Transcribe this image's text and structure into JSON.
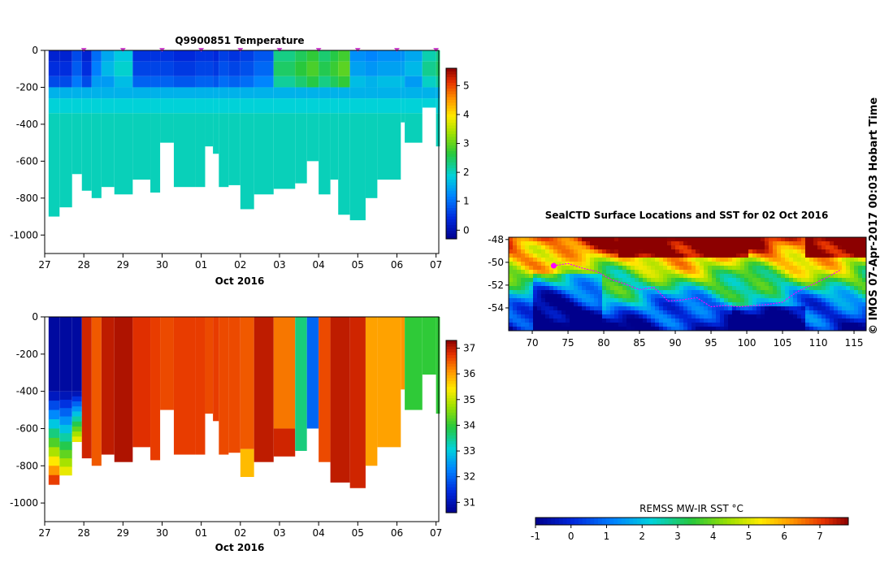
{
  "chart_data": [
    {
      "type": "heatmap",
      "title": "Q9900851  Temperature",
      "xlabel": "Oct 2016",
      "x_tick_labels": [
        "27",
        "28",
        "29",
        "30",
        "01",
        "02",
        "03",
        "04",
        "05",
        "06",
        "07"
      ],
      "y_tick_labels": [
        "0",
        "-200",
        "-400",
        "-600",
        "-800",
        "-1000"
      ],
      "ylim": [
        -1100,
        0
      ],
      "colorbar": {
        "ticks": [
          "0",
          "1",
          "2",
          "3",
          "4",
          "5"
        ],
        "range": [
          -0.3,
          5.6
        ]
      },
      "profile_markers": [
        "28",
        "29",
        "30",
        "01",
        "02",
        "03",
        "04",
        "05",
        "06",
        "07"
      ],
      "profiles": [
        {
          "x": [
            27.1,
            27.38
          ],
          "max_depth": 900,
          "surface": 0.3
        },
        {
          "x": [
            27.38,
            27.7
          ],
          "max_depth": 850,
          "surface": 0.3
        },
        {
          "x": [
            27.7,
            27.95
          ],
          "max_depth": 670,
          "surface": 0.7
        },
        {
          "x": [
            27.95,
            28.2
          ],
          "max_depth": 760,
          "surface": 0.3
        },
        {
          "x": [
            28.2,
            28.45
          ],
          "max_depth": 800,
          "surface": 1.0
        },
        {
          "x": [
            28.45,
            28.78
          ],
          "max_depth": 740,
          "surface": 1.5
        },
        {
          "x": [
            28.78,
            29.25
          ],
          "max_depth": 780,
          "surface": 1.8
        },
        {
          "x": [
            29.25,
            29.7
          ],
          "max_depth": 700,
          "surface": 0.5
        },
        {
          "x": [
            29.7,
            29.95
          ],
          "max_depth": 770,
          "surface": 0.5
        },
        {
          "x": [
            29.95,
            30.3
          ],
          "max_depth": 500,
          "surface": 0.5
        },
        {
          "x": [
            30.3,
            30.85
          ],
          "max_depth": 740,
          "surface": 0.4
        },
        {
          "x": [
            30.85,
            31.1
          ],
          "max_depth": 740,
          "surface": 0.5
        },
        {
          "x": [
            31.1,
            31.3
          ],
          "max_depth": 520,
          "surface": 0.5
        },
        {
          "x": [
            31.3,
            31.45
          ],
          "max_depth": 560,
          "surface": 0.4
        },
        {
          "x": [
            31.45,
            31.7
          ],
          "max_depth": 740,
          "surface": 0.6
        },
        {
          "x": [
            31.7,
            32.0
          ],
          "max_depth": 730,
          "surface": 0.5
        },
        {
          "x": [
            32.0,
            32.35
          ],
          "max_depth": 860,
          "surface": 0.6
        },
        {
          "x": [
            32.35,
            32.85
          ],
          "max_depth": 780,
          "surface": 0.8
        },
        {
          "x": [
            32.85,
            33.4
          ],
          "max_depth": 750,
          "surface": 2.3
        },
        {
          "x": [
            33.4,
            33.7
          ],
          "max_depth": 720,
          "surface": 2.5
        },
        {
          "x": [
            33.7,
            34.0
          ],
          "max_depth": 600,
          "surface": 2.7
        },
        {
          "x": [
            34.0,
            34.3
          ],
          "max_depth": 780,
          "surface": 2.4
        },
        {
          "x": [
            34.3,
            34.5
          ],
          "max_depth": 700,
          "surface": 2.6
        },
        {
          "x": [
            34.5,
            34.8
          ],
          "max_depth": 890,
          "surface": 2.8
        },
        {
          "x": [
            34.8,
            35.2
          ],
          "max_depth": 920,
          "surface": 1.3
        },
        {
          "x": [
            35.2,
            35.5
          ],
          "max_depth": 800,
          "surface": 1.2
        },
        {
          "x": [
            35.5,
            36.1
          ],
          "max_depth": 700,
          "surface": 1.3
        },
        {
          "x": [
            36.1,
            36.2
          ],
          "max_depth": 390,
          "surface": 1.3
        },
        {
          "x": [
            36.2,
            36.65
          ],
          "max_depth": 500,
          "surface": 1.5
        },
        {
          "x": [
            36.65,
            37.0
          ],
          "max_depth": 310,
          "surface": 2.1
        },
        {
          "x": [
            37.0,
            37.1
          ],
          "max_depth": 520,
          "surface": 2.3
        }
      ]
    },
    {
      "type": "heatmap",
      "title": "",
      "xlabel": "Oct 2016",
      "x_tick_labels": [
        "27",
        "28",
        "29",
        "30",
        "01",
        "02",
        "03",
        "04",
        "05",
        "06",
        "07"
      ],
      "y_tick_labels": [
        "0",
        "-200",
        "-400",
        "-600",
        "-800",
        "-1000"
      ],
      "ylim": [
        -1100,
        0
      ],
      "colorbar": {
        "ticks": [
          "31",
          "32",
          "33",
          "34",
          "35",
          "36",
          "37"
        ],
        "range": [
          30.6,
          37.3
        ]
      },
      "profiles": [
        {
          "x": [
            27.1,
            27.38
          ],
          "max_depth": 900,
          "value": 30.8,
          "deep": 37.0
        },
        {
          "x": [
            27.38,
            27.7
          ],
          "max_depth": 850,
          "value": 30.8,
          "deep": 35.5
        },
        {
          "x": [
            27.7,
            27.95
          ],
          "max_depth": 670,
          "value": 30.8,
          "deep": 35.5
        },
        {
          "x": [
            27.95,
            28.2
          ],
          "max_depth": 760,
          "value": 36.9
        },
        {
          "x": [
            28.2,
            28.45
          ],
          "max_depth": 800,
          "value": 36.5
        },
        {
          "x": [
            28.45,
            28.78
          ],
          "max_depth": 740,
          "value": 37.0
        },
        {
          "x": [
            28.78,
            29.25
          ],
          "max_depth": 780,
          "value": 37.1
        },
        {
          "x": [
            29.25,
            29.7
          ],
          "max_depth": 700,
          "value": 36.8
        },
        {
          "x": [
            29.7,
            29.95
          ],
          "max_depth": 770,
          "value": 36.7
        },
        {
          "x": [
            29.95,
            30.3
          ],
          "max_depth": 500,
          "value": 36.6
        },
        {
          "x": [
            30.3,
            30.85
          ],
          "max_depth": 740,
          "value": 36.7
        },
        {
          "x": [
            30.85,
            31.1
          ],
          "max_depth": 740,
          "value": 36.7
        },
        {
          "x": [
            31.1,
            31.3
          ],
          "max_depth": 520,
          "value": 36.6
        },
        {
          "x": [
            31.3,
            31.45
          ],
          "max_depth": 560,
          "value": 36.7
        },
        {
          "x": [
            31.45,
            31.7
          ],
          "max_depth": 740,
          "value": 36.6
        },
        {
          "x": [
            31.7,
            32.0
          ],
          "max_depth": 730,
          "value": 36.6
        },
        {
          "x": [
            32.0,
            32.35
          ],
          "max_depth": 860,
          "value": 36.5,
          "deep": 35.8
        },
        {
          "x": [
            32.35,
            32.85
          ],
          "max_depth": 780,
          "value": 37.0
        },
        {
          "x": [
            32.85,
            33.4
          ],
          "max_depth": 750,
          "value": 36.3,
          "deep": 36.9
        },
        {
          "x": [
            33.4,
            33.7
          ],
          "max_depth": 720,
          "value": 33.6
        },
        {
          "x": [
            33.7,
            34.0
          ],
          "max_depth": 600,
          "value": 32.0
        },
        {
          "x": [
            34.0,
            34.3
          ],
          "max_depth": 780,
          "value": 36.6
        },
        {
          "x": [
            34.3,
            34.8
          ],
          "max_depth": 890,
          "value": 37.0
        },
        {
          "x": [
            34.8,
            35.2
          ],
          "max_depth": 920,
          "value": 36.9
        },
        {
          "x": [
            35.2,
            35.5
          ],
          "max_depth": 800,
          "value": 36.0
        },
        {
          "x": [
            35.5,
            36.1
          ],
          "max_depth": 700,
          "value": 36.0
        },
        {
          "x": [
            36.1,
            36.2
          ],
          "max_depth": 390,
          "value": 36.1
        },
        {
          "x": [
            36.2,
            36.65
          ],
          "max_depth": 500,
          "value": 34.0
        },
        {
          "x": [
            36.65,
            37.0
          ],
          "max_depth": 310,
          "value": 34.0
        },
        {
          "x": [
            37.0,
            37.1
          ],
          "max_depth": 520,
          "value": 34.0
        }
      ]
    },
    {
      "type": "heatmap",
      "title": "SealCTD Surface Locations and SST for 02 Oct 2016",
      "x_tick_labels": [
        "70",
        "75",
        "80",
        "85",
        "90",
        "95",
        "100",
        "105",
        "110",
        "115"
      ],
      "y_tick_labels": [
        "-48",
        "-50",
        "-52",
        "-54"
      ],
      "xlim": [
        66.7,
        116.7
      ],
      "ylim": [
        -56.0,
        -47.8
      ],
      "colorbar": {
        "label": "REMSS MW-IR SST °C",
        "ticks": [
          "-1",
          "0",
          "1",
          "2",
          "3",
          "4",
          "5",
          "6",
          "7"
        ],
        "range": [
          -1,
          7.8
        ]
      },
      "track_lon": [
        73,
        75,
        77,
        79,
        81,
        83,
        85,
        87,
        89,
        91,
        93,
        95,
        97,
        99,
        101,
        103,
        105,
        107,
        109,
        111,
        113
      ],
      "track_lat": [
        -50.3,
        -50.1,
        -50.5,
        -50.8,
        -51.5,
        -51.9,
        -52.4,
        -52.2,
        -53.4,
        -53.3,
        -53.1,
        -53.9,
        -53.8,
        -53.9,
        -53.8,
        -53.7,
        -53.5,
        -52.6,
        -52.0,
        -51.4,
        -50.7
      ],
      "surface_point": {
        "lon": 73.0,
        "lat": -50.3
      }
    }
  ],
  "copyright": "© IMOS 07-Apr-2017 00:03 Hobart Time",
  "colors": {
    "track": "#ff00ff",
    "marker": "#cc44cc"
  }
}
